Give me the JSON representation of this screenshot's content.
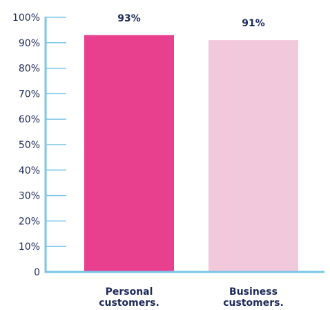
{
  "chart_data": {
    "type": "bar",
    "title": "",
    "xlabel": "",
    "ylabel": "",
    "ylim": [
      0,
      100
    ],
    "yticks": [
      {
        "value": 0,
        "label": "0"
      },
      {
        "value": 10,
        "label": "10%"
      },
      {
        "value": 20,
        "label": "20%"
      },
      {
        "value": 30,
        "label": "30%"
      },
      {
        "value": 40,
        "label": "40%"
      },
      {
        "value": 50,
        "label": "50%"
      },
      {
        "value": 60,
        "label": "60%"
      },
      {
        "value": 70,
        "label": "70%"
      },
      {
        "value": 80,
        "label": "80%"
      },
      {
        "value": 90,
        "label": "90%"
      },
      {
        "value": 100,
        "label": "100%"
      }
    ],
    "categories": [
      [
        "Personal",
        "customers."
      ],
      [
        "Business",
        "customers."
      ]
    ],
    "values": [
      93,
      91
    ],
    "value_labels": [
      "93%",
      "91%"
    ],
    "bar_colors": [
      "#e8408e",
      "#f2c8dc"
    ],
    "axis_color": "#79c6e8",
    "text_color": "#1d2a5a",
    "grid": false,
    "legend": "none"
  }
}
